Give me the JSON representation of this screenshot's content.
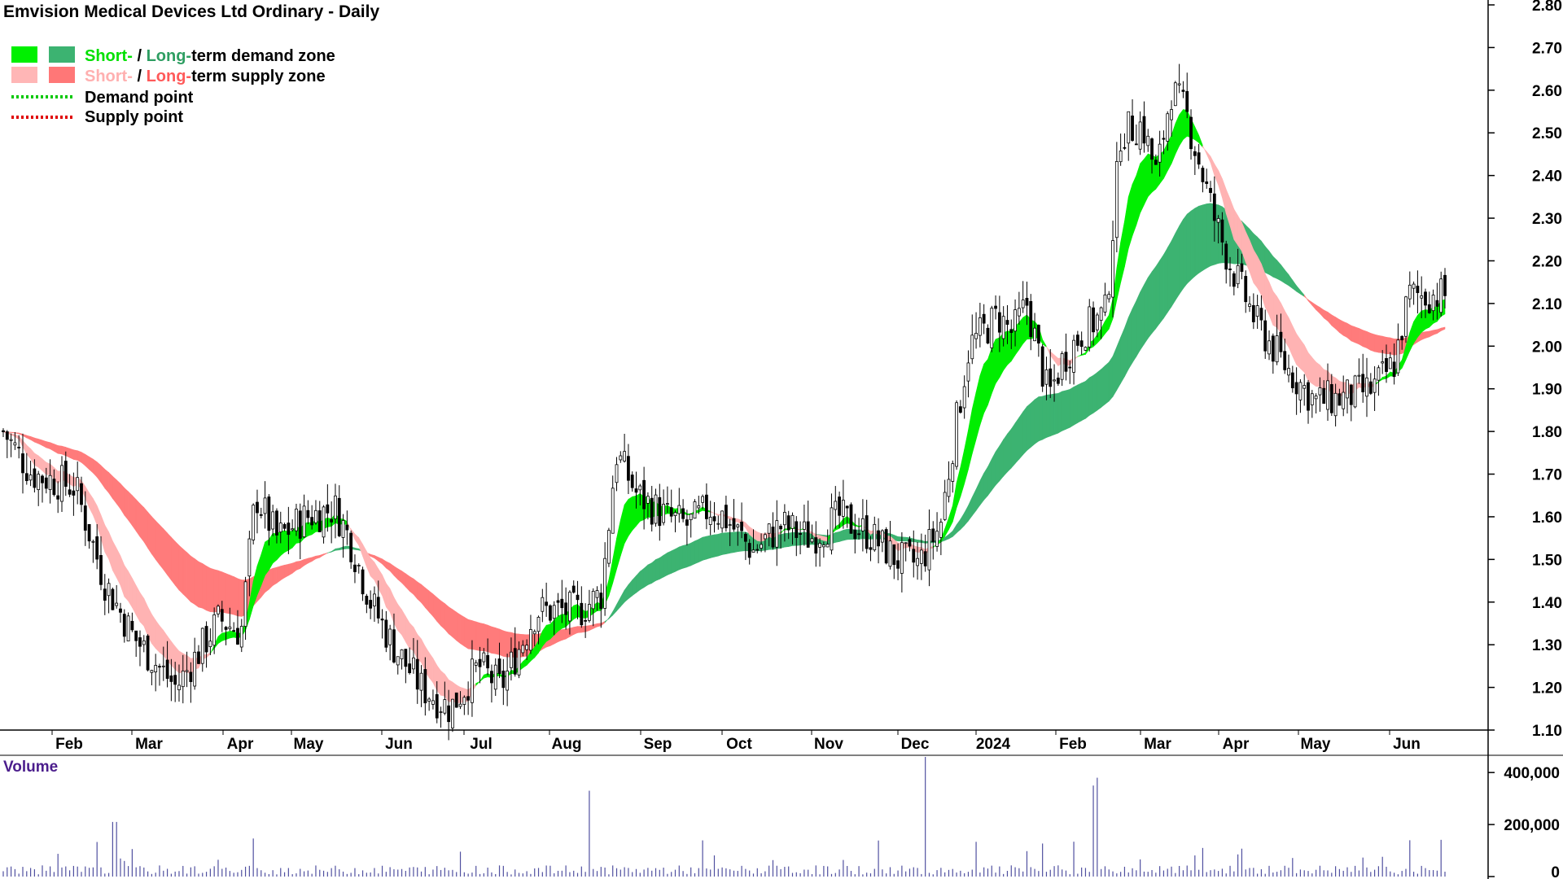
{
  "title": "Emvision Medical Devices Ltd Ordinary - Daily",
  "legend": [
    {
      "swatches": [
        "#00f000",
        "#3cb371"
      ],
      "short": "Short-",
      "sep": " / ",
      "long": "Long-",
      "rest": "term demand zone",
      "short_color": "#00e000",
      "long_color": "#2e9e62"
    },
    {
      "swatches": [
        "#ffb6b6",
        "#ff7777"
      ],
      "short": "Short-",
      "sep": " / ",
      "long": "Long-",
      "rest": "term supply zone",
      "short_color": "#ffb0b0",
      "long_color": "#ff5a5a"
    },
    {
      "dotted": "#00c800",
      "label": "Demand point"
    },
    {
      "dotted": "#e00000",
      "label": "Supply point"
    }
  ],
  "volume_label": "Volume",
  "colors": {
    "short_demand": "#00ee00",
    "long_demand": "#3cb371",
    "short_supply": "#ffb3b3",
    "long_supply": "#ff7b7b",
    "overlap": "#ff7f2a",
    "volume_bar": "#5050a0",
    "candle": "#000000"
  },
  "chart_data": {
    "type": "candlestick",
    "title": "Emvision Medical Devices Ltd Ordinary - Daily",
    "ylim": [
      1.1,
      2.8
    ],
    "y_ticks": [
      "1.10",
      "1.20",
      "1.30",
      "1.40",
      "1.50",
      "1.60",
      "1.70",
      "1.80",
      "1.90",
      "2.00",
      "2.10",
      "2.20",
      "2.30",
      "2.40",
      "2.50",
      "2.60",
      "2.70",
      "2.80"
    ],
    "month_ticks": [
      "Feb",
      "Mar",
      "Apr",
      "May",
      "Jun",
      "Jul",
      "Aug",
      "Sep",
      "Oct",
      "Nov",
      "Dec",
      "2024",
      "Feb",
      "Mar",
      "Apr",
      "May",
      "Jun"
    ],
    "price_anchors": [
      [
        0,
        1.8
      ],
      [
        0.02,
        1.7
      ],
      [
        0.05,
        1.67
      ],
      [
        0.07,
        1.45
      ],
      [
        0.09,
        1.32
      ],
      [
        0.12,
        1.2
      ],
      [
        0.15,
        1.36
      ],
      [
        0.165,
        1.33
      ],
      [
        0.175,
        1.65
      ],
      [
        0.19,
        1.55
      ],
      [
        0.21,
        1.6
      ],
      [
        0.23,
        1.62
      ],
      [
        0.24,
        1.55
      ],
      [
        0.255,
        1.4
      ],
      [
        0.27,
        1.3
      ],
      [
        0.29,
        1.2
      ],
      [
        0.31,
        1.15
      ],
      [
        0.33,
        1.25
      ],
      [
        0.345,
        1.2
      ],
      [
        0.37,
        1.38
      ],
      [
        0.4,
        1.38
      ],
      [
        0.415,
        1.42
      ],
      [
        0.425,
        1.75
      ],
      [
        0.44,
        1.65
      ],
      [
        0.46,
        1.6
      ],
      [
        0.475,
        1.58
      ],
      [
        0.49,
        1.62
      ],
      [
        0.5,
        1.6
      ],
      [
        0.52,
        1.52
      ],
      [
        0.54,
        1.58
      ],
      [
        0.56,
        1.55
      ],
      [
        0.58,
        1.6
      ],
      [
        0.6,
        1.56
      ],
      [
        0.62,
        1.5
      ],
      [
        0.635,
        1.49
      ],
      [
        0.65,
        1.58
      ],
      [
        0.66,
        1.8
      ],
      [
        0.67,
        2.0
      ],
      [
        0.69,
        2.07
      ],
      [
        0.7,
        2.03
      ],
      [
        0.71,
        2.1
      ],
      [
        0.725,
        1.88
      ],
      [
        0.735,
        1.97
      ],
      [
        0.75,
        2.04
      ],
      [
        0.765,
        2.08
      ],
      [
        0.775,
        2.5
      ],
      [
        0.79,
        2.52
      ],
      [
        0.8,
        2.4
      ],
      [
        0.81,
        2.6
      ],
      [
        0.82,
        2.55
      ],
      [
        0.84,
        2.3
      ],
      [
        0.85,
        2.2
      ],
      [
        0.87,
        2.05
      ],
      [
        0.89,
        1.95
      ],
      [
        0.91,
        1.87
      ],
      [
        0.93,
        1.88
      ],
      [
        0.95,
        1.9
      ],
      [
        0.965,
        1.96
      ],
      [
        0.975,
        2.12
      ]
    ],
    "volume_scale_max": 460000,
    "volume_ticks": [
      "0",
      "200,000",
      "400,000"
    ]
  }
}
